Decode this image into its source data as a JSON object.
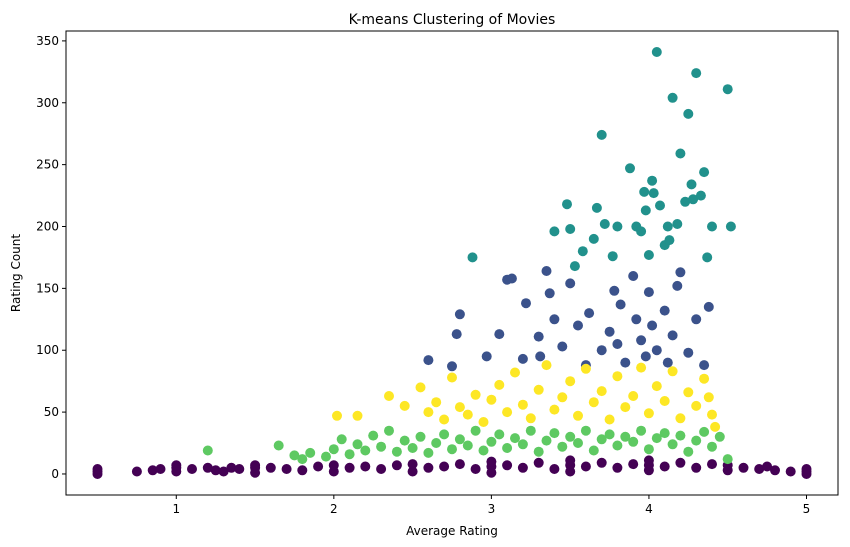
{
  "chart_data": {
    "type": "scatter",
    "title": "K-means Clustering of Movies",
    "xlabel": "Average Rating",
    "ylabel": "Rating Count",
    "xlim": [
      0.3,
      5.2
    ],
    "ylim": [
      -17,
      358
    ],
    "xticks": [
      1,
      2,
      3,
      4,
      5
    ],
    "yticks": [
      0,
      50,
      100,
      150,
      200,
      250,
      300,
      350
    ],
    "grid": false,
    "legend": "none",
    "cluster_colors": [
      "#440154",
      "#3b528b",
      "#21918c",
      "#5ec962",
      "#fde725"
    ],
    "series": [
      {
        "cluster": 0,
        "color": "#440154",
        "points": [
          [
            0.5,
            0
          ],
          [
            0.5,
            2
          ],
          [
            0.5,
            4
          ],
          [
            0.75,
            2
          ],
          [
            0.85,
            3
          ],
          [
            0.9,
            4
          ],
          [
            1.0,
            2
          ],
          [
            1.0,
            5
          ],
          [
            1.0,
            7
          ],
          [
            1.1,
            4
          ],
          [
            1.2,
            5
          ],
          [
            1.25,
            3
          ],
          [
            1.3,
            2
          ],
          [
            1.35,
            5
          ],
          [
            1.4,
            4
          ],
          [
            1.5,
            1
          ],
          [
            1.5,
            5
          ],
          [
            1.5,
            7
          ],
          [
            1.6,
            5
          ],
          [
            1.7,
            4
          ],
          [
            1.8,
            3
          ],
          [
            1.9,
            6
          ],
          [
            2.0,
            2
          ],
          [
            2.0,
            7
          ],
          [
            2.1,
            5
          ],
          [
            2.2,
            6
          ],
          [
            2.3,
            4
          ],
          [
            2.4,
            7
          ],
          [
            2.5,
            2
          ],
          [
            2.5,
            8
          ],
          [
            2.6,
            5
          ],
          [
            2.7,
            6
          ],
          [
            2.8,
            8
          ],
          [
            2.9,
            4
          ],
          [
            3.0,
            1
          ],
          [
            3.0,
            6
          ],
          [
            3.0,
            10
          ],
          [
            3.1,
            7
          ],
          [
            3.2,
            5
          ],
          [
            3.3,
            9
          ],
          [
            3.4,
            4
          ],
          [
            3.5,
            2
          ],
          [
            3.5,
            7
          ],
          [
            3.5,
            11
          ],
          [
            3.6,
            6
          ],
          [
            3.7,
            9
          ],
          [
            3.8,
            5
          ],
          [
            3.9,
            8
          ],
          [
            4.0,
            3
          ],
          [
            4.0,
            7
          ],
          [
            4.0,
            11
          ],
          [
            4.1,
            6
          ],
          [
            4.2,
            9
          ],
          [
            4.3,
            5
          ],
          [
            4.4,
            8
          ],
          [
            4.5,
            3
          ],
          [
            4.5,
            7
          ],
          [
            4.6,
            5
          ],
          [
            4.7,
            4
          ],
          [
            4.75,
            6
          ],
          [
            4.8,
            3
          ],
          [
            4.9,
            2
          ],
          [
            5.0,
            0
          ],
          [
            5.0,
            2
          ],
          [
            5.0,
            4
          ]
        ]
      },
      {
        "cluster": 1,
        "color": "#3b528b",
        "points": [
          [
            2.6,
            92
          ],
          [
            2.75,
            87
          ],
          [
            2.78,
            113
          ],
          [
            2.8,
            129
          ],
          [
            2.97,
            95
          ],
          [
            3.05,
            113
          ],
          [
            3.1,
            157
          ],
          [
            3.13,
            158
          ],
          [
            3.2,
            93
          ],
          [
            3.22,
            138
          ],
          [
            3.3,
            111
          ],
          [
            3.31,
            95
          ],
          [
            3.35,
            164
          ],
          [
            3.37,
            146
          ],
          [
            3.4,
            125
          ],
          [
            3.45,
            103
          ],
          [
            3.5,
            154
          ],
          [
            3.55,
            120
          ],
          [
            3.6,
            88
          ],
          [
            3.62,
            130
          ],
          [
            3.7,
            100
          ],
          [
            3.75,
            115
          ],
          [
            3.78,
            148
          ],
          [
            3.8,
            105
          ],
          [
            3.82,
            137
          ],
          [
            3.85,
            90
          ],
          [
            3.9,
            160
          ],
          [
            3.92,
            125
          ],
          [
            3.95,
            108
          ],
          [
            3.98,
            95
          ],
          [
            4.0,
            147
          ],
          [
            4.02,
            120
          ],
          [
            4.05,
            100
          ],
          [
            4.1,
            132
          ],
          [
            4.12,
            90
          ],
          [
            4.15,
            112
          ],
          [
            4.18,
            152
          ],
          [
            4.2,
            163
          ],
          [
            4.25,
            98
          ],
          [
            4.3,
            125
          ],
          [
            4.35,
            88
          ],
          [
            4.38,
            135
          ]
        ]
      },
      {
        "cluster": 2,
        "color": "#21918c",
        "points": [
          [
            2.88,
            175
          ],
          [
            3.4,
            196
          ],
          [
            3.48,
            218
          ],
          [
            3.5,
            198
          ],
          [
            3.53,
            168
          ],
          [
            3.58,
            180
          ],
          [
            3.65,
            190
          ],
          [
            3.67,
            215
          ],
          [
            3.7,
            274
          ],
          [
            3.72,
            202
          ],
          [
            3.77,
            176
          ],
          [
            3.8,
            200
          ],
          [
            3.88,
            247
          ],
          [
            3.92,
            200
          ],
          [
            3.95,
            196
          ],
          [
            3.97,
            228
          ],
          [
            3.98,
            213
          ],
          [
            4.0,
            177
          ],
          [
            4.02,
            237
          ],
          [
            4.03,
            227
          ],
          [
            4.05,
            341
          ],
          [
            4.07,
            217
          ],
          [
            4.1,
            185
          ],
          [
            4.12,
            200
          ],
          [
            4.13,
            189
          ],
          [
            4.15,
            304
          ],
          [
            4.18,
            202
          ],
          [
            4.2,
            259
          ],
          [
            4.23,
            220
          ],
          [
            4.25,
            291
          ],
          [
            4.27,
            234
          ],
          [
            4.28,
            222
          ],
          [
            4.3,
            324
          ],
          [
            4.33,
            225
          ],
          [
            4.35,
            244
          ],
          [
            4.37,
            175
          ],
          [
            4.4,
            200
          ],
          [
            4.5,
            311
          ],
          [
            4.52,
            200
          ]
        ]
      },
      {
        "cluster": 3,
        "color": "#5ec962",
        "points": [
          [
            1.2,
            19
          ],
          [
            1.65,
            23
          ],
          [
            1.75,
            15
          ],
          [
            1.8,
            12
          ],
          [
            1.85,
            17
          ],
          [
            1.95,
            14
          ],
          [
            2.0,
            20
          ],
          [
            2.05,
            28
          ],
          [
            2.1,
            16
          ],
          [
            2.15,
            24
          ],
          [
            2.2,
            19
          ],
          [
            2.25,
            31
          ],
          [
            2.3,
            22
          ],
          [
            2.35,
            35
          ],
          [
            2.4,
            18
          ],
          [
            2.45,
            27
          ],
          [
            2.5,
            21
          ],
          [
            2.55,
            30
          ],
          [
            2.6,
            17
          ],
          [
            2.65,
            25
          ],
          [
            2.7,
            32
          ],
          [
            2.75,
            20
          ],
          [
            2.8,
            28
          ],
          [
            2.85,
            23
          ],
          [
            2.9,
            35
          ],
          [
            2.95,
            19
          ],
          [
            3.0,
            26
          ],
          [
            3.05,
            32
          ],
          [
            3.1,
            21
          ],
          [
            3.15,
            29
          ],
          [
            3.2,
            24
          ],
          [
            3.25,
            35
          ],
          [
            3.3,
            18
          ],
          [
            3.35,
            27
          ],
          [
            3.4,
            33
          ],
          [
            3.45,
            22
          ],
          [
            3.5,
            30
          ],
          [
            3.55,
            25
          ],
          [
            3.6,
            35
          ],
          [
            3.65,
            19
          ],
          [
            3.7,
            28
          ],
          [
            3.75,
            32
          ],
          [
            3.8,
            23
          ],
          [
            3.85,
            30
          ],
          [
            3.9,
            26
          ],
          [
            3.95,
            35
          ],
          [
            4.0,
            20
          ],
          [
            4.05,
            29
          ],
          [
            4.1,
            33
          ],
          [
            4.15,
            24
          ],
          [
            4.2,
            31
          ],
          [
            4.25,
            18
          ],
          [
            4.3,
            27
          ],
          [
            4.35,
            34
          ],
          [
            4.4,
            22
          ],
          [
            4.45,
            30
          ],
          [
            4.5,
            12
          ]
        ]
      },
      {
        "cluster": 4,
        "color": "#fde725",
        "points": [
          [
            2.02,
            47
          ],
          [
            2.15,
            47
          ],
          [
            2.35,
            63
          ],
          [
            2.45,
            55
          ],
          [
            2.55,
            70
          ],
          [
            2.6,
            50
          ],
          [
            2.65,
            58
          ],
          [
            2.7,
            44
          ],
          [
            2.75,
            78
          ],
          [
            2.8,
            54
          ],
          [
            2.85,
            48
          ],
          [
            2.9,
            64
          ],
          [
            2.95,
            42
          ],
          [
            3.0,
            60
          ],
          [
            3.05,
            72
          ],
          [
            3.1,
            50
          ],
          [
            3.15,
            82
          ],
          [
            3.2,
            56
          ],
          [
            3.25,
            45
          ],
          [
            3.3,
            68
          ],
          [
            3.35,
            88
          ],
          [
            3.4,
            52
          ],
          [
            3.45,
            62
          ],
          [
            3.5,
            75
          ],
          [
            3.55,
            47
          ],
          [
            3.6,
            85
          ],
          [
            3.65,
            58
          ],
          [
            3.7,
            67
          ],
          [
            3.75,
            44
          ],
          [
            3.8,
            79
          ],
          [
            3.85,
            54
          ],
          [
            3.9,
            63
          ],
          [
            3.95,
            86
          ],
          [
            4.0,
            49
          ],
          [
            4.05,
            71
          ],
          [
            4.1,
            59
          ],
          [
            4.15,
            83
          ],
          [
            4.2,
            45
          ],
          [
            4.25,
            66
          ],
          [
            4.3,
            55
          ],
          [
            4.35,
            77
          ],
          [
            4.38,
            62
          ],
          [
            4.4,
            48
          ],
          [
            4.42,
            38
          ]
        ]
      }
    ]
  }
}
